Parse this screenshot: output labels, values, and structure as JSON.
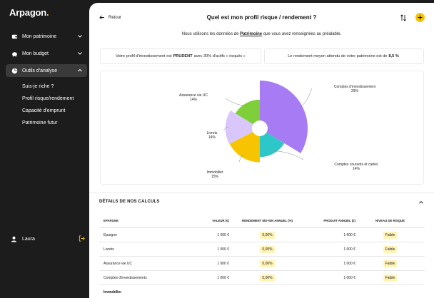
{
  "app": {
    "name": "Arpagon",
    "dot": "."
  },
  "sidebar": {
    "items": [
      {
        "label": "Mon patrimoine"
      },
      {
        "label": "Mon budget"
      },
      {
        "label": "Outils d'analyse"
      }
    ],
    "subitems": [
      {
        "label": "Suis-je riche ?"
      },
      {
        "label": "Profil risque/rendement"
      },
      {
        "label": "Capacité d'emprunt"
      },
      {
        "label": "Patrimoine futur"
      }
    ],
    "user": {
      "name": "Laura"
    }
  },
  "header": {
    "back_label": "Retour",
    "title": "Quel est mon profil risque / rendement ?",
    "subtitle_before": "Nous utilisons les données de ",
    "subtitle_link": "Patrimoine",
    "subtitle_after": " que vous avez renseignées au préalable."
  },
  "summary": {
    "profile_before": "Votre profil d'investissement est",
    "profile_value": "PRUDENT",
    "profile_after": "avec 30% d'actifs « risqués »",
    "return_before": "Le rendement moyen attendu de votre patrimoine est de",
    "return_value": "8,5 %"
  },
  "chart_data": {
    "type": "pie",
    "categories": [
      "Comptes d'investissement",
      "Comptes courants et cartes",
      "Immobilier",
      "Livrets",
      "Assurance vie UC"
    ],
    "values": [
      29,
      14,
      15,
      14,
      14
    ],
    "labels": [
      "29%",
      "14%",
      "15%",
      "14%",
      "14%"
    ],
    "colors": [
      "#a77bf3",
      "#2dc7c9",
      "#f7c400",
      "#d9c6fb",
      "#7fcf3a"
    ],
    "radius": [
      1.0,
      0.6,
      0.71,
      0.72,
      0.6
    ],
    "donut": true
  },
  "details": {
    "title": "DÉTAILS DE NOS CALCULS",
    "columns": [
      "EPARGNE",
      "VALEUR (€)",
      "RENDEMENT MOYEN ANNUEL (%)",
      "PRODUIT ANNUEL (€)",
      "NIVEAU DE RISQUE"
    ],
    "rows": [
      {
        "name": "Epargne",
        "value": "1 000 €",
        "rate": "0,00%",
        "product": "1 000 €",
        "risk": "Faible"
      },
      {
        "name": "Livrets",
        "value": "1 000 €",
        "rate": "0,00%",
        "product": "1 000 €",
        "risk": "Faible"
      },
      {
        "name": "Assurance vie UC",
        "value": "1 000 €",
        "rate": "0,00%",
        "product": "1 000 €",
        "risk": "Faible"
      },
      {
        "name": "Comptes d'investissements",
        "value": "1 000 €",
        "rate": "0,00%",
        "product": "1 000 €",
        "risk": "Faible"
      }
    ],
    "group_label": "Immobilier"
  },
  "colors": {
    "accent": "#f5c400",
    "sidebar_bg": "#1c1c1c",
    "pill_bg": "#fff3b8"
  }
}
